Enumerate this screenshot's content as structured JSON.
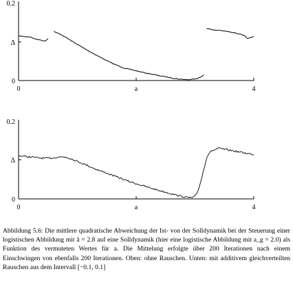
{
  "chart_data": [
    {
      "type": "scatter",
      "title": "",
      "xlabel": "a",
      "ylabel": "",
      "xlim": [
        0,
        4
      ],
      "ylim": [
        0,
        0.2
      ],
      "xticks": [
        "0",
        "a",
        "4"
      ],
      "yticks": [
        "0",
        "Δ",
        "0.2"
      ],
      "grid": false,
      "legend": "none",
      "series": [
        {
          "segments": [
            {
              "x": [
                0.0,
                0.1,
                0.2,
                0.28,
                0.33,
                0.38,
                0.45,
                0.5
              ],
              "y": [
                0.113,
                0.111,
                0.11,
                0.105,
                0.104,
                0.102,
                0.1,
                0.106
              ]
            },
            {
              "x": [
                0.6,
                0.75,
                0.9,
                1.05,
                1.2,
                1.4,
                1.6,
                1.8,
                1.9,
                2.1,
                2.4,
                2.7,
                2.9,
                3.05,
                3.12,
                3.15
              ],
              "y": [
                0.124,
                0.114,
                0.1,
                0.087,
                0.074,
                0.058,
                0.043,
                0.031,
                0.028,
                0.021,
                0.012,
                0.004,
                0.002,
                0.006,
                0.01,
                0.015
              ]
            },
            {
              "x": [
                3.2,
                3.3,
                3.45,
                3.6,
                3.75,
                3.85,
                3.9,
                4.0
              ],
              "y": [
                0.132,
                0.128,
                0.126,
                0.123,
                0.118,
                0.112,
                0.106,
                0.111
              ]
            }
          ]
        }
      ]
    },
    {
      "type": "scatter",
      "title": "",
      "xlabel": "a",
      "ylabel": "",
      "xlim": [
        0,
        4
      ],
      "ylim": [
        0,
        0.2
      ],
      "xticks": [
        "0",
        "a",
        "4"
      ],
      "yticks": [
        "0",
        "Δ",
        "0.2"
      ],
      "grid": false,
      "legend": "none",
      "series": [
        {
          "segments": [
            {
              "x": [
                0.0,
                0.2,
                0.4,
                0.55,
                0.7,
                0.8,
                0.9,
                1.1,
                1.3,
                1.5,
                1.7,
                1.9,
                2.1,
                2.3,
                2.5,
                2.7,
                2.85,
                2.95,
                3.0,
                3.05,
                3.1,
                3.15,
                3.2,
                3.25,
                3.3,
                3.4,
                3.55,
                3.7,
                3.85,
                4.0
              ],
              "y": [
                0.109,
                0.106,
                0.103,
                0.103,
                0.106,
                0.106,
                0.101,
                0.089,
                0.076,
                0.065,
                0.054,
                0.043,
                0.034,
                0.025,
                0.017,
                0.009,
                0.004,
                0.003,
                0.006,
                0.02,
                0.045,
                0.075,
                0.105,
                0.118,
                0.122,
                0.128,
                0.124,
                0.12,
                0.116,
                0.112
              ]
            }
          ]
        }
      ]
    }
  ],
  "caption": {
    "label": "Abbildung 5.6:",
    "text": "Die mittlere quadratische Abweichung der Ist- von der Solldynamik bei der Steuerung einer logistischen Abbildung mit ã = 2.8 auf eine Solldynamik (hier eine logistische Abbildung mit a_g = 2.0) als Funktion des vermuteten Wertes für a. Die Mittelung erfolgte über 200 Iterationen nach einem Einschwingen von ebenfalls 200 Iterationen. Oben: ohne Rauschen. Unten: mit additivem gleichverteilten Rauschen aus dem Intervall [−0.1, 0.1]"
  }
}
